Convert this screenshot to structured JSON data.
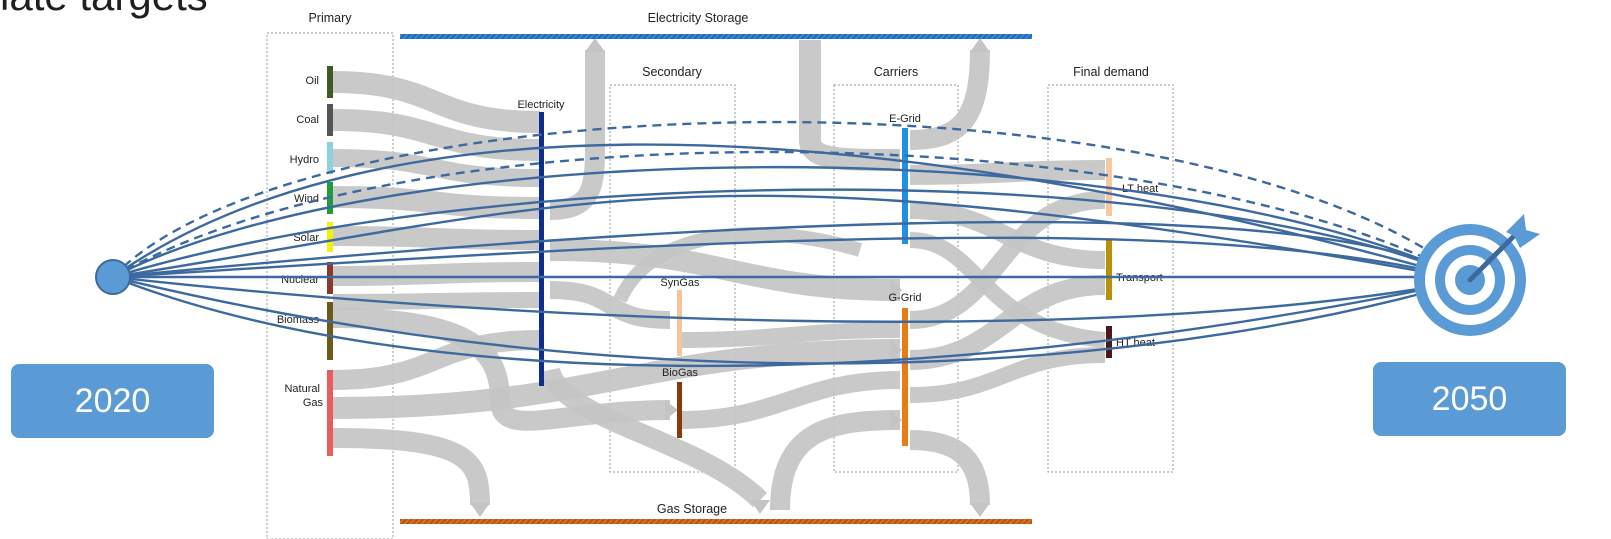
{
  "slide": {
    "title_fragment": "late targets"
  },
  "stages": {
    "primary": "Primary",
    "electricity_storage": "Electricity Storage",
    "secondary": "Secondary",
    "carriers": "Carriers",
    "final_demand": "Final demand",
    "gas_storage": "Gas Storage"
  },
  "primary_sources": [
    {
      "label": "Oil",
      "color": "#3f5b24"
    },
    {
      "label": "Coal",
      "color": "#555555"
    },
    {
      "label": "Hydro",
      "color": "#8ecfe0"
    },
    {
      "label": "Wind",
      "color": "#1e9e3a"
    },
    {
      "label": "Solar",
      "color": "#f2f20a"
    },
    {
      "label": "Nuclear",
      "color": "#8a3a2a"
    },
    {
      "label": "Biomass",
      "color": "#6b5a1a"
    },
    {
      "label": "Natural Gas",
      "color": "#ef5b5b"
    }
  ],
  "secondary_nodes": [
    {
      "label": "Electricity",
      "color": "#0b2f8a"
    },
    {
      "label": "SynGas",
      "color": "#f6c39a"
    },
    {
      "label": "BioGas",
      "color": "#8a3a0a"
    }
  ],
  "carrier_nodes": [
    {
      "label": "E-Grid",
      "color": "#1e90e6"
    },
    {
      "label": "G-Grid",
      "color": "#e87b12"
    }
  ],
  "final_demand_nodes": [
    {
      "label": "LT heat",
      "color": "#f8c6a0"
    },
    {
      "label": "Transport",
      "color": "#b8900a"
    },
    {
      "label": "HT heat",
      "color": "#4a1a1a"
    }
  ],
  "timeline": {
    "start_year": "2020",
    "end_year": "2050"
  },
  "colors": {
    "pathway_line": "#3d6a9e",
    "flow": "#c4c4c4",
    "electricity_storage_bar": "#1f6fc0",
    "gas_storage_bar": "#c2560f",
    "year_box": "#5b9bd5",
    "target_icon": "#5b9bd5"
  },
  "icons": {
    "start_node": "circle-node-icon",
    "target": "target-bullseye-icon"
  }
}
